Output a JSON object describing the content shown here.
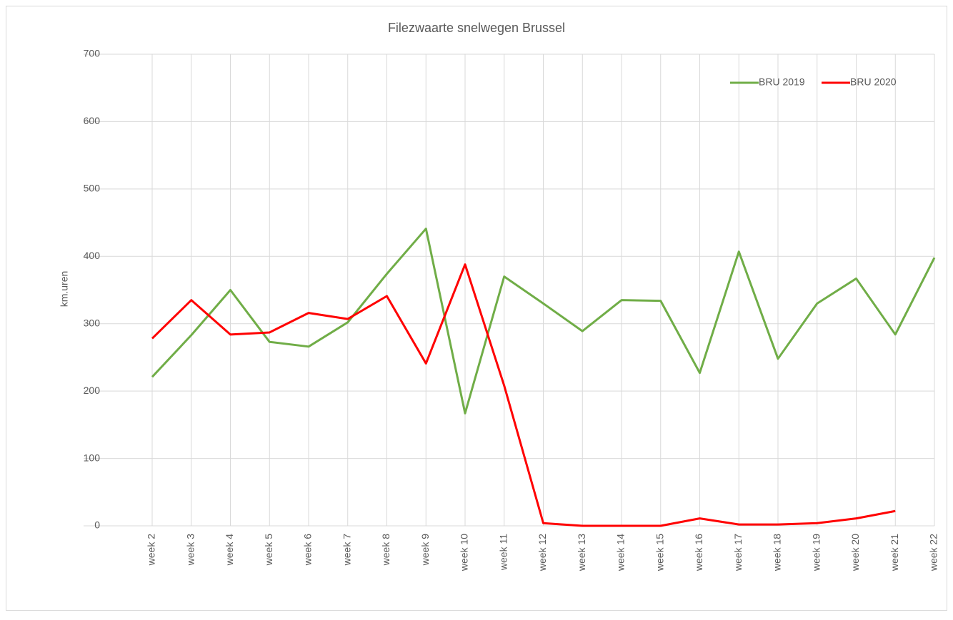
{
  "chart_data": {
    "type": "line",
    "title": "Filezwaarte snelwegen Brussel",
    "y_label": "km.uren",
    "categories": [
      "week 2",
      "week 3",
      "week 4",
      "week 5",
      "week 6",
      "week 7",
      "week 8",
      "week 9",
      "week 10",
      "week 11",
      "week 12",
      "week 13",
      "week 14",
      "week 15",
      "week 16",
      "week 17",
      "week 18",
      "week 19",
      "week 20",
      "week 21",
      "week 22"
    ],
    "series": [
      {
        "name": "BRU 2019",
        "color": "#70ad47",
        "values": [
          221,
          283,
          350,
          273,
          266,
          302,
          374,
          441,
          167,
          370,
          330,
          289,
          335,
          334,
          227,
          407,
          248,
          330,
          367,
          284,
          398
        ]
      },
      {
        "name": "BRU 2020",
        "color": "#ff0000",
        "values": [
          278,
          335,
          284,
          287,
          316,
          307,
          341,
          241,
          388,
          208,
          4,
          0,
          0,
          0,
          11,
          2,
          2,
          4,
          11,
          22,
          null
        ]
      }
    ],
    "ylim": [
      0,
      700
    ],
    "yticks": [
      0,
      100,
      200,
      300,
      400,
      500,
      600,
      700
    ],
    "grid": true,
    "legend": "top-right"
  }
}
